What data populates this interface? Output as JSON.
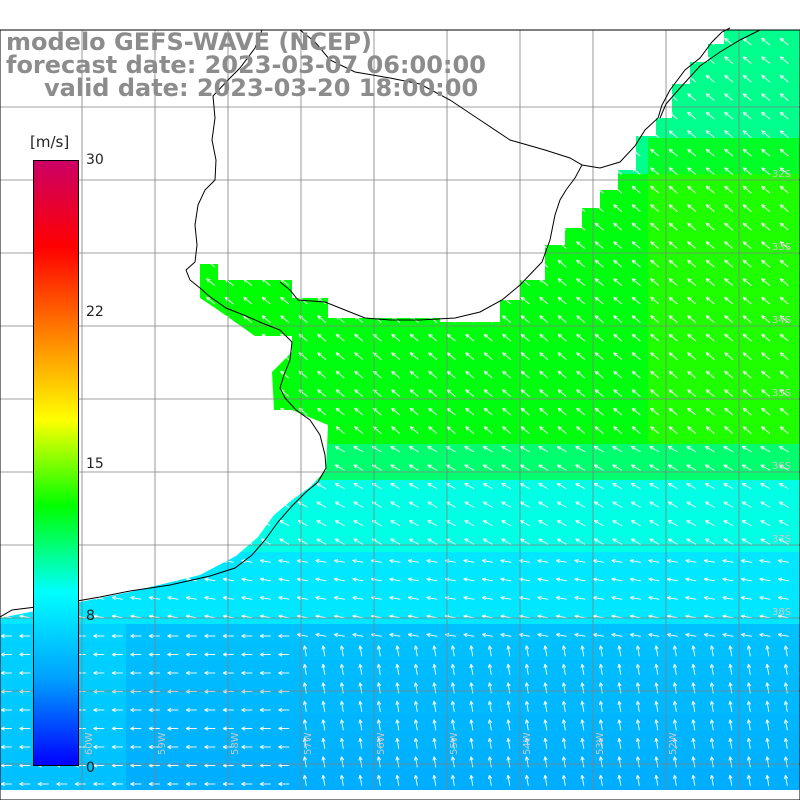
{
  "title": {
    "model": "modelo GEFS-WAVE (NCEP)",
    "forecast": "forecast date: 2023-03-07 06:00:00",
    "valid": "valid date: 2023-03-20 18:00:00"
  },
  "colorbar": {
    "unit": "[m/s]",
    "ticks": [
      {
        "label": "30",
        "value": 30
      },
      {
        "label": "22",
        "value": 22
      },
      {
        "label": "15",
        "value": 15
      },
      {
        "label": "8",
        "value": 8
      },
      {
        "label": "0",
        "value": 0
      }
    ],
    "range": [
      0,
      30
    ],
    "stops": [
      "#0000ff",
      "#00a0ff",
      "#00ffff",
      "#00ff00",
      "#ffff00",
      "#ff8000",
      "#ff0000",
      "#cc0066"
    ]
  },
  "map": {
    "lon_range": [
      -62,
      -51
    ],
    "lat_range": [
      -41,
      -31
    ],
    "lat_labels": [
      "32S",
      "33S",
      "34S",
      "35S",
      "36S",
      "37S",
      "38S"
    ],
    "lon_labels": [
      "60W",
      "59W",
      "58W",
      "57W",
      "56W",
      "55W",
      "54W",
      "53W",
      "52W"
    ],
    "field": "10 m wind speed and direction over the ocean"
  }
}
